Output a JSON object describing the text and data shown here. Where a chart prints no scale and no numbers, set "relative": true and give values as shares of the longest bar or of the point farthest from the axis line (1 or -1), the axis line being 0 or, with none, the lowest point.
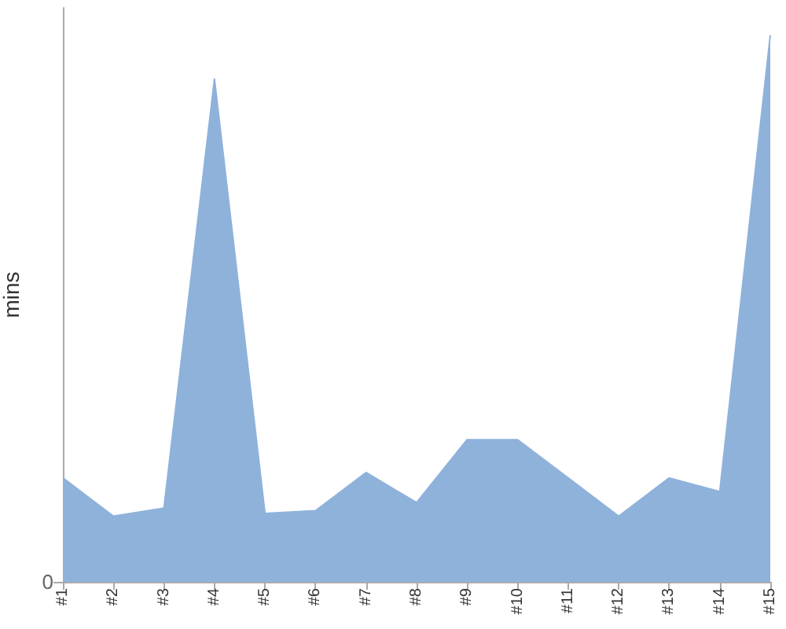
{
  "chart_data": {
    "type": "area",
    "ylabel": "mins",
    "relative": true,
    "annotations": [
      "0"
    ],
    "categories": [
      "#1",
      "#2",
      "#3",
      "#4",
      "#5",
      "#6",
      "#7",
      "#8",
      "#9",
      "#10",
      "#11",
      "#12",
      "#13",
      "#14",
      "#15"
    ],
    "series": [
      {
        "color": "#8fb2db",
        "values": [
          0.19,
          0.12,
          0.135,
          0.92,
          0.125,
          0.13,
          0.2,
          0.145,
          0.26,
          0.26,
          0.19,
          0.12,
          0.19,
          0.165,
          1
        ]
      }
    ],
    "grid": false
  }
}
